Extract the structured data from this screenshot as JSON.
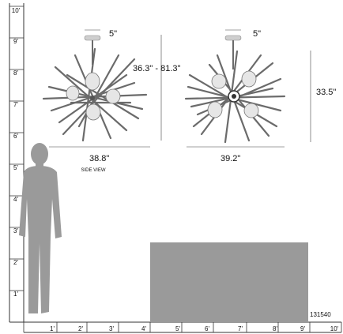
{
  "vertical_ruler": {
    "labels": [
      "10'",
      "9'",
      "8'",
      "7'",
      "6'",
      "5'",
      "4'",
      "3'",
      "2'",
      "1'"
    ]
  },
  "horizontal_ruler": {
    "labels": [
      "1'",
      "2'",
      "3'",
      "4'",
      "5'",
      "6'",
      "7'",
      "8'",
      "9'",
      "10'"
    ]
  },
  "side_view": {
    "canopy_width": "5\"",
    "height_range": "36.3\" - 81.3\"",
    "width": "38.8\"",
    "caption": "SIDE VIEW"
  },
  "front_view": {
    "canopy_width": "5\"",
    "height": "33.5\"",
    "width": "39.2\""
  },
  "product_id": "131540",
  "colors": {
    "ruler_line": "#333333",
    "silhouette": "#9a9a9a",
    "floor_rect": "#9a9a9a",
    "rod": "#6b6b6b",
    "glass": "#d8d8d8"
  }
}
